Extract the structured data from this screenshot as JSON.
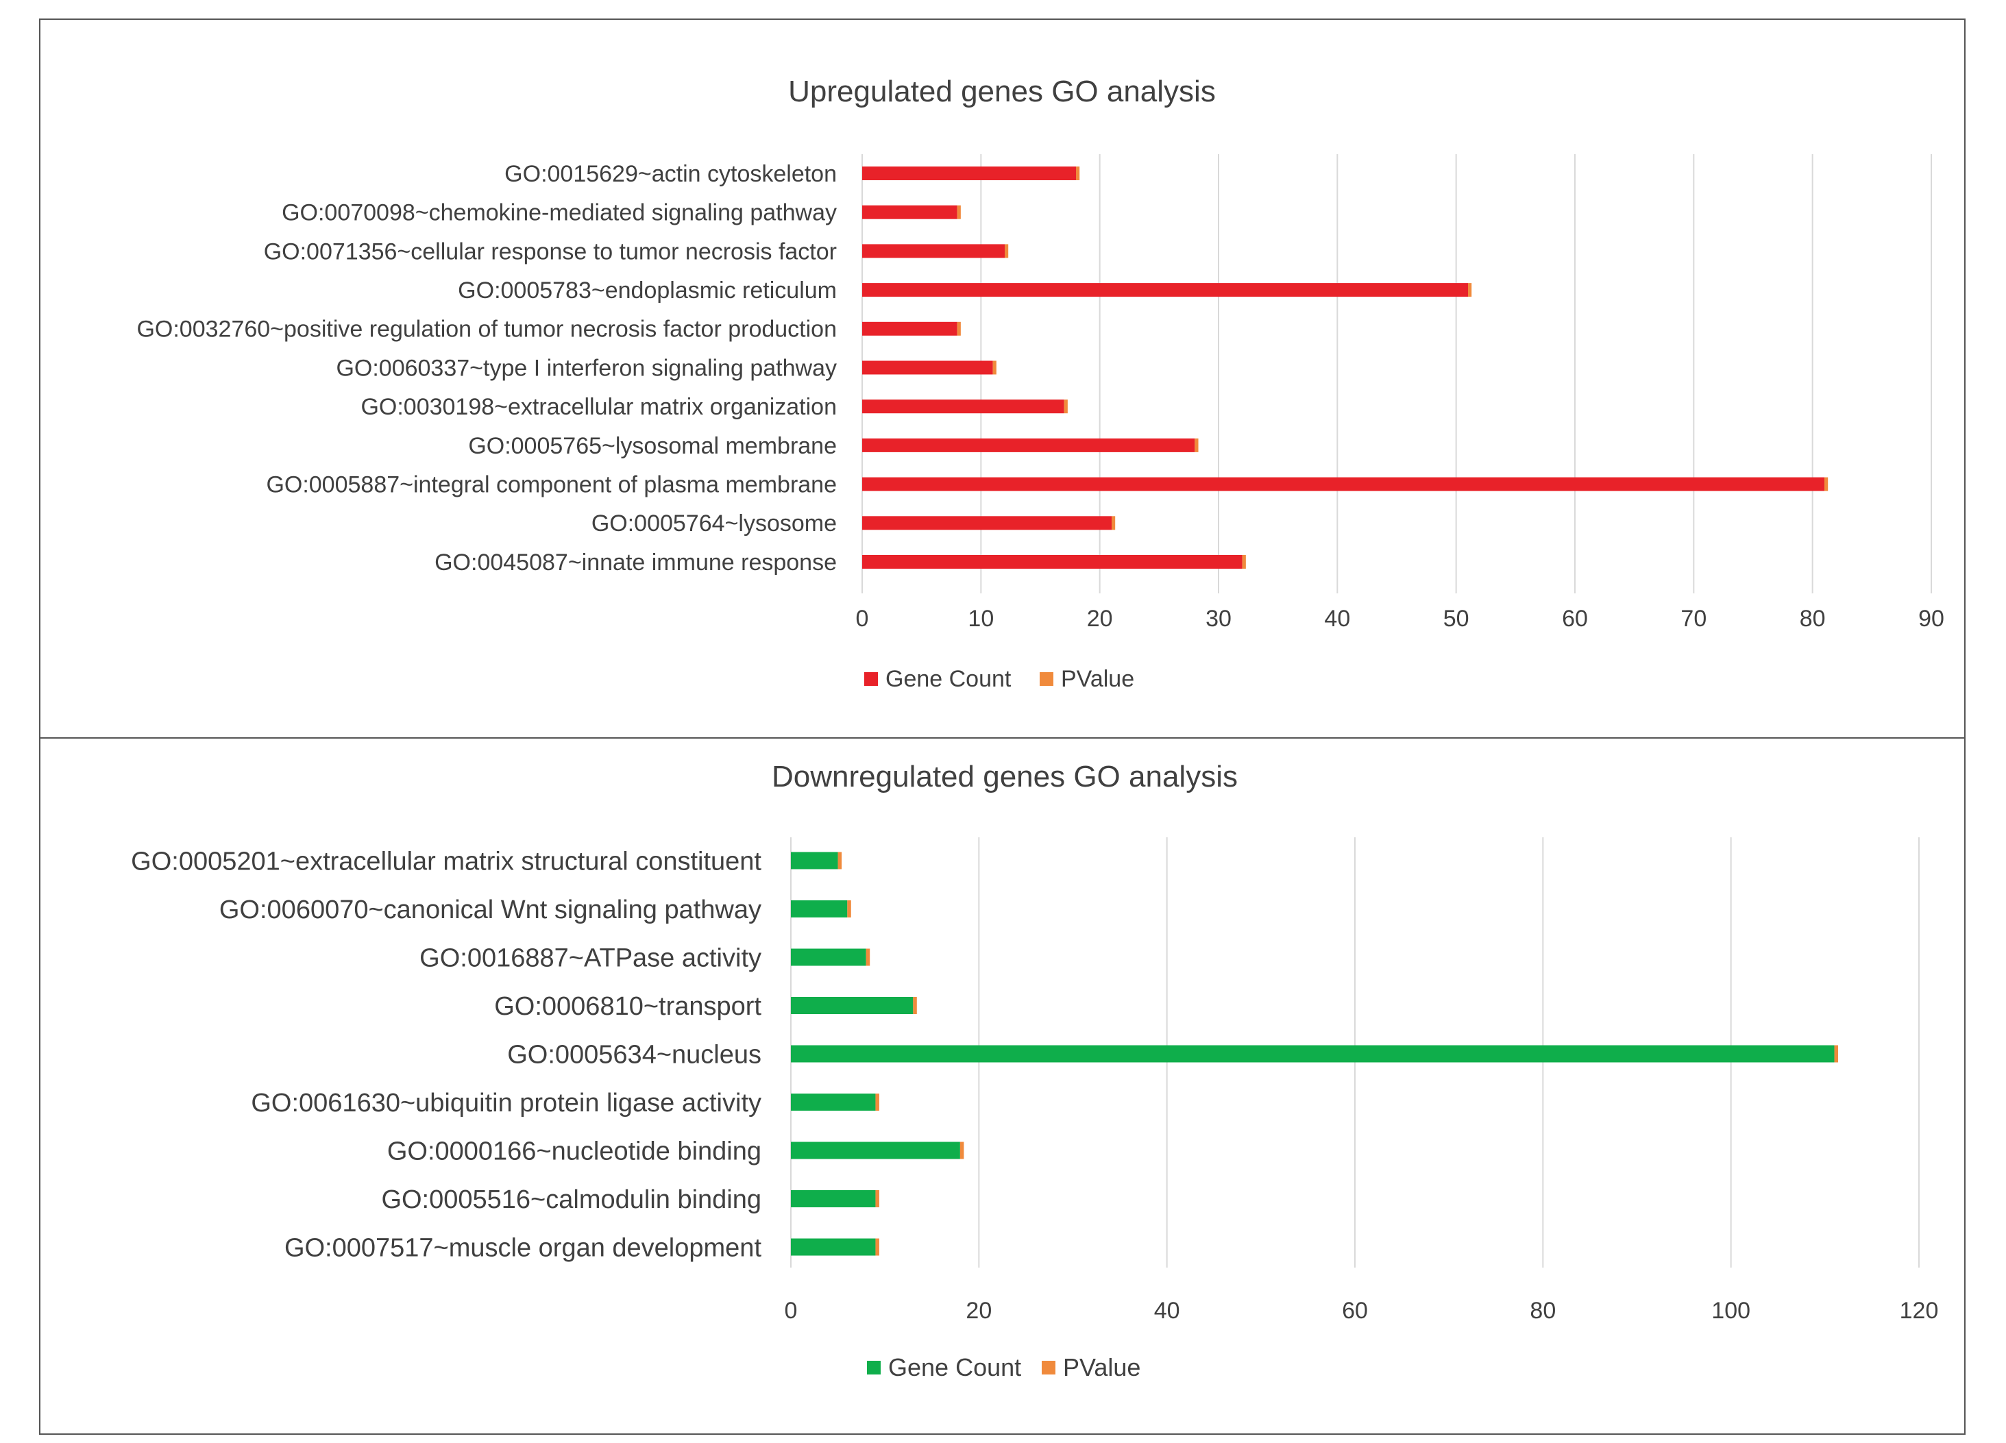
{
  "chart_data": [
    {
      "type": "bar",
      "orientation": "horizontal",
      "stacked": true,
      "title": "Upregulated genes GO analysis",
      "categories": [
        "GO:0015629~actin cytoskeleton",
        "GO:0070098~chemokine-mediated signaling pathway",
        "GO:0071356~cellular response to tumor necrosis factor",
        "GO:0005783~endoplasmic reticulum",
        "GO:0032760~positive regulation of tumor necrosis factor production",
        "GO:0060337~type I interferon signaling pathway",
        "GO:0030198~extracellular matrix organization",
        "GO:0005765~lysosomal membrane",
        "GO:0005887~integral component of plasma membrane",
        "GO:0005764~lysosome",
        "GO:0045087~innate immune response"
      ],
      "series": [
        {
          "name": "Gene Count",
          "color": "#e82229",
          "values": [
            18,
            8,
            12,
            51,
            8,
            11,
            17,
            28,
            81,
            21,
            32
          ]
        },
        {
          "name": "PValue",
          "color": "#f08a3c",
          "values": [
            0.3,
            0.3,
            0.3,
            0.3,
            0.3,
            0.3,
            0.3,
            0.3,
            0.3,
            0.3,
            0.3
          ]
        }
      ],
      "xlim": [
        0,
        90
      ],
      "xticks": [
        "0",
        "10",
        "20",
        "30",
        "40",
        "50",
        "60",
        "70",
        "80",
        "90"
      ],
      "grid": "vertical",
      "legend": "bottom"
    },
    {
      "type": "bar",
      "orientation": "horizontal",
      "stacked": true,
      "title": "Downregulated genes GO analysis",
      "categories": [
        "GO:0005201~extracellular matrix structural constituent",
        "GO:0060070~canonical Wnt signaling pathway",
        "GO:0016887~ATPase activity",
        "GO:0006810~transport",
        "GO:0005634~nucleus",
        "GO:0061630~ubiquitin protein ligase activity",
        "GO:0000166~nucleotide binding",
        "GO:0005516~calmodulin binding",
        "GO:0007517~muscle organ development"
      ],
      "series": [
        {
          "name": "Gene Count",
          "color": "#0fae4b",
          "values": [
            5,
            6,
            8,
            13,
            111,
            9,
            18,
            9,
            9
          ]
        },
        {
          "name": "PValue",
          "color": "#f08a3c",
          "values": [
            0.4,
            0.4,
            0.4,
            0.4,
            0.4,
            0.4,
            0.4,
            0.4,
            0.4
          ]
        }
      ],
      "xlim": [
        0,
        120
      ],
      "xticks": [
        "0",
        "20",
        "40",
        "60",
        "80",
        "100",
        "120"
      ],
      "grid": "vertical",
      "legend": "bottom"
    }
  ]
}
